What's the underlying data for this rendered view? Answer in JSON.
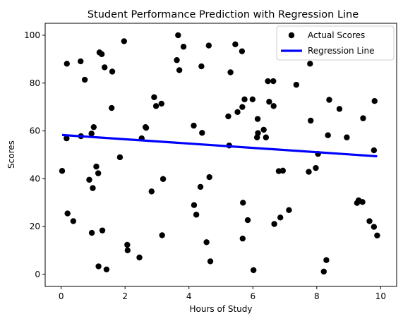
{
  "chart_data": {
    "type": "scatter",
    "title": "Student Performance Prediction with Regression Line",
    "xlabel": "Hours of Study",
    "ylabel": "Scores",
    "xlim": [
      -0.5,
      10.5
    ],
    "ylim": [
      -5,
      105
    ],
    "xticks": [
      0,
      2,
      4,
      6,
      8,
      10
    ],
    "yticks": [
      0,
      20,
      40,
      60,
      80,
      100
    ],
    "grid": false,
    "legend_position": "top-right",
    "series": [
      {
        "name": "Actual Scores",
        "kind": "scatter",
        "color": "#000000",
        "points": [
          [
            0.03,
            43.3
          ],
          [
            0.17,
            56.9
          ],
          [
            0.18,
            88.1
          ],
          [
            0.2,
            25.5
          ],
          [
            0.38,
            22.3
          ],
          [
            0.61,
            89.1
          ],
          [
            0.62,
            57.8
          ],
          [
            0.74,
            81.4
          ],
          [
            0.88,
            39.6
          ],
          [
            0.95,
            58.9
          ],
          [
            0.96,
            17.4
          ],
          [
            0.99,
            36.1
          ],
          [
            1.02,
            61.6
          ],
          [
            1.1,
            45.1
          ],
          [
            1.16,
            42.3
          ],
          [
            1.17,
            3.4
          ],
          [
            1.2,
            92.8
          ],
          [
            1.27,
            92.1
          ],
          [
            1.29,
            18.4
          ],
          [
            1.36,
            86.6
          ],
          [
            1.42,
            2.1
          ],
          [
            1.58,
            69.6
          ],
          [
            1.6,
            84.8
          ],
          [
            1.84,
            49.0
          ],
          [
            1.97,
            97.5
          ],
          [
            2.07,
            12.4
          ],
          [
            2.08,
            10.1
          ],
          [
            2.45,
            7.1
          ],
          [
            2.52,
            56.9
          ],
          [
            2.64,
            61.6
          ],
          [
            2.66,
            61.3
          ],
          [
            2.83,
            34.7
          ],
          [
            2.91,
            74.1
          ],
          [
            2.97,
            70.4
          ],
          [
            3.14,
            71.4
          ],
          [
            3.16,
            16.4
          ],
          [
            3.19,
            39.9
          ],
          [
            3.62,
            89.6
          ],
          [
            3.66,
            100.0
          ],
          [
            3.7,
            85.4
          ],
          [
            3.83,
            95.2
          ],
          [
            4.15,
            62.2
          ],
          [
            4.16,
            29.0
          ],
          [
            4.23,
            25.0
          ],
          [
            4.36,
            36.6
          ],
          [
            4.39,
            87.0
          ],
          [
            4.41,
            59.2
          ],
          [
            4.55,
            13.5
          ],
          [
            4.62,
            95.7
          ],
          [
            4.64,
            40.7
          ],
          [
            4.67,
            5.5
          ],
          [
            5.23,
            66.1
          ],
          [
            5.26,
            53.9
          ],
          [
            5.3,
            84.5
          ],
          [
            5.45,
            96.2
          ],
          [
            5.52,
            67.9
          ],
          [
            5.66,
            93.3
          ],
          [
            5.67,
            70.0
          ],
          [
            5.68,
            15.0
          ],
          [
            5.69,
            30.0
          ],
          [
            5.74,
            73.2
          ],
          [
            5.84,
            22.7
          ],
          [
            5.99,
            73.2
          ],
          [
            6.02,
            1.8
          ],
          [
            6.13,
            57.3
          ],
          [
            6.15,
            65.0
          ],
          [
            6.16,
            59.1
          ],
          [
            6.34,
            60.5
          ],
          [
            6.41,
            57.3
          ],
          [
            6.47,
            80.8
          ],
          [
            6.51,
            72.2
          ],
          [
            6.64,
            80.8
          ],
          [
            6.65,
            70.4
          ],
          [
            6.67,
            21.1
          ],
          [
            6.81,
            43.2
          ],
          [
            6.86,
            23.8
          ],
          [
            6.94,
            43.4
          ],
          [
            7.13,
            26.9
          ],
          [
            7.36,
            79.3
          ],
          [
            7.75,
            42.9
          ],
          [
            7.79,
            88.1
          ],
          [
            7.81,
            64.3
          ],
          [
            7.97,
            44.5
          ],
          [
            8.04,
            50.4
          ],
          [
            8.22,
            1.2
          ],
          [
            8.3,
            6.0
          ],
          [
            8.35,
            58.2
          ],
          [
            8.39,
            73.0
          ],
          [
            8.71,
            69.2
          ],
          [
            8.94,
            57.3
          ],
          [
            9.26,
            29.9
          ],
          [
            9.31,
            31.0
          ],
          [
            9.43,
            30.3
          ],
          [
            9.45,
            65.3
          ],
          [
            9.65,
            22.3
          ],
          [
            9.79,
            19.9
          ],
          [
            9.79,
            51.9
          ],
          [
            9.81,
            72.5
          ],
          [
            9.89,
            16.3
          ]
        ]
      },
      {
        "name": "Regression Line",
        "kind": "line",
        "color": "#0000ff",
        "points": [
          [
            0.03,
            58.3
          ],
          [
            9.89,
            49.4
          ]
        ]
      }
    ]
  }
}
